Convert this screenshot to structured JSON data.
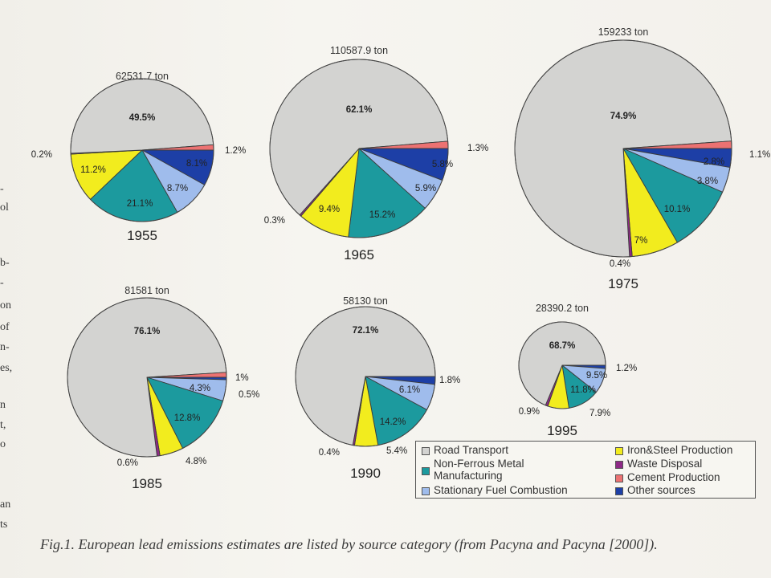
{
  "chart_data": [
    {
      "type": "pie",
      "title": "62531.7 ton",
      "label": "1955",
      "slices": [
        {
          "category": "Road Transport",
          "value": 49.5
        },
        {
          "category": "Other sources",
          "value": 8.1
        },
        {
          "category": "Stationary Fuel Combustion",
          "value": 8.7
        },
        {
          "category": "Non-Ferrous Metal Manufacturing",
          "value": 21.1
        },
        {
          "category": "Iron&Steel Production",
          "value": 11.2
        },
        {
          "category": "Waste Disposal",
          "value": 0.2
        },
        {
          "category": "Cement Production",
          "value": 1.2
        }
      ]
    },
    {
      "type": "pie",
      "title": "110587.9 ton",
      "label": "1965",
      "slices": [
        {
          "category": "Road Transport",
          "value": 62.1
        },
        {
          "category": "Other sources",
          "value": 5.8
        },
        {
          "category": "Stationary Fuel Combustion",
          "value": 5.9
        },
        {
          "category": "Non-Ferrous Metal Manufacturing",
          "value": 15.2
        },
        {
          "category": "Iron&Steel Production",
          "value": 9.4
        },
        {
          "category": "Waste Disposal",
          "value": 0.3
        },
        {
          "category": "Cement Production",
          "value": 1.3
        }
      ]
    },
    {
      "type": "pie",
      "title": "159233 ton",
      "label": "1975",
      "slices": [
        {
          "category": "Road Transport",
          "value": 74.9
        },
        {
          "category": "Other sources",
          "value": 2.8
        },
        {
          "category": "Stationary Fuel Combustion",
          "value": 3.8
        },
        {
          "category": "Non-Ferrous Metal Manufacturing",
          "value": 10.1
        },
        {
          "category": "Iron&Steel Production",
          "value": 7
        },
        {
          "category": "Waste Disposal",
          "value": 0.4
        },
        {
          "category": "Cement Production",
          "value": 1.1
        }
      ]
    },
    {
      "type": "pie",
      "title": "81581 ton",
      "label": "1985",
      "slices": [
        {
          "category": "Road Transport",
          "value": 76.1
        },
        {
          "category": "Other sources",
          "value": 0.5
        },
        {
          "category": "Stationary Fuel Combustion",
          "value": 4.3
        },
        {
          "category": "Non-Ferrous Metal Manufacturing",
          "value": 12.8
        },
        {
          "category": "Iron&Steel Production",
          "value": 4.8
        },
        {
          "category": "Waste Disposal",
          "value": 0.6
        },
        {
          "category": "Cement Production",
          "value": 1.0
        }
      ]
    },
    {
      "type": "pie",
      "title": "58130 ton",
      "label": "1990",
      "slices": [
        {
          "category": "Road Transport",
          "value": 72.1
        },
        {
          "category": "Other sources",
          "value": 1.8
        },
        {
          "category": "Stationary Fuel Combustion",
          "value": 6.1
        },
        {
          "category": "Non-Ferrous Metal Manufacturing",
          "value": 14.2
        },
        {
          "category": "Iron&Steel Production",
          "value": 5.4
        },
        {
          "category": "Waste Disposal",
          "value": 0.4
        }
      ]
    },
    {
      "type": "pie",
      "title": "28390.2 ton",
      "label": "1995",
      "slices": [
        {
          "category": "Road Transport",
          "value": 68.7
        },
        {
          "category": "Other sources",
          "value": 1.2
        },
        {
          "category": "Stationary Fuel Combustion",
          "value": 9.5
        },
        {
          "category": "Non-Ferrous Metal Manufacturing",
          "value": 11.8
        },
        {
          "category": "Iron&Steel Production",
          "value": 7.9
        },
        {
          "category": "Waste Disposal",
          "value": 0.9
        }
      ]
    }
  ],
  "legend": [
    {
      "label": "Road Transport",
      "color": "#d3d3d1"
    },
    {
      "label": "Non-Ferrous Metal Manufacturing",
      "color": "#1c9a9e"
    },
    {
      "label": "Stationary Fuel Combustion",
      "color": "#9fbcec"
    },
    {
      "label": "Iron&Steel Production",
      "color": "#f2ec1e"
    },
    {
      "label": "Waste Disposal",
      "color": "#8e2a86"
    },
    {
      "label": "Cement Production",
      "color": "#ec7272"
    },
    {
      "label": "Other sources",
      "color": "#1d3fa6"
    }
  ],
  "caption": "Fig.1. European lead emissions estimates are listed by source category (from Pacyna and Pacyna [2000]).",
  "margin_text": [
    "-",
    "ol",
    "b-",
    "-",
    "on",
    "of",
    "n-",
    "es,",
    "n",
    "t,",
    "o",
    "an",
    "ts"
  ]
}
